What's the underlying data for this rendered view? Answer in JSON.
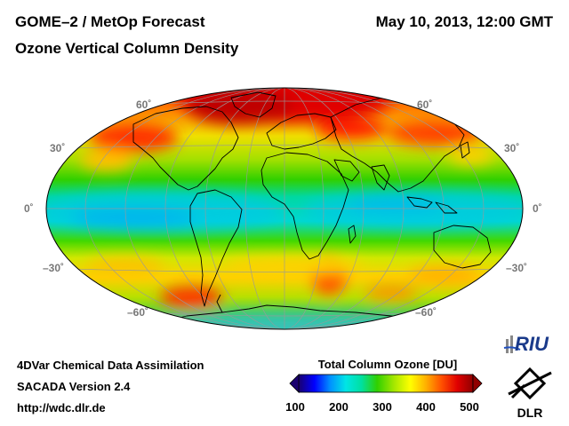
{
  "header": {
    "title_left": "GOME–2 / MetOp Forecast",
    "title_right": "May 10, 2013, 12:00 GMT",
    "subtitle": "Ozone Vertical Column Density"
  },
  "map": {
    "projection": "Hammer-Aitoff",
    "lat_labels": {
      "n60": "60˚",
      "n30": "30˚",
      "eq": "0˚",
      "s30": "–30˚",
      "s60": "–60˚"
    }
  },
  "footer": {
    "line1": "4DVar Chemical Data Assimilation",
    "line2": "SACADA Version 2.4",
    "line3": "http://wdc.dlr.de"
  },
  "colorbar": {
    "title": "Total Column Ozone [DU]",
    "ticks": [
      "100",
      "200",
      "300",
      "400",
      "500"
    ],
    "colors": [
      "#1a0070",
      "#0000ff",
      "#0090ff",
      "#00e5e5",
      "#00e0a0",
      "#30d000",
      "#a8e800",
      "#ffff00",
      "#ffb000",
      "#ff5000",
      "#e00000",
      "#900000"
    ]
  },
  "logos": {
    "riu": "RIU",
    "dlr": "DLR"
  }
}
